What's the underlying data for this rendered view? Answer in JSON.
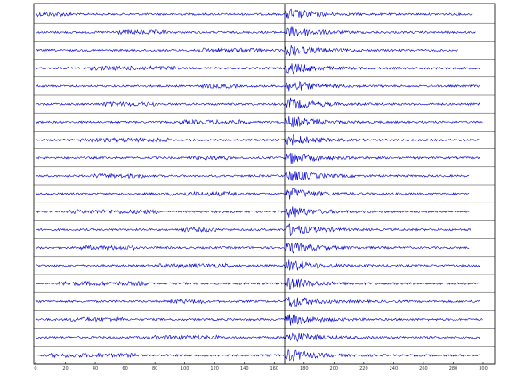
{
  "chart_data": {
    "type": "waveform",
    "color": "#0000cc",
    "xlim": [
      0,
      300
    ],
    "xticks": [
      0,
      20,
      40,
      60,
      80,
      100,
      120,
      140,
      160,
      180,
      200,
      220,
      240,
      260,
      280,
      300
    ],
    "onset": 167,
    "traces": [
      {
        "end": 293
      },
      {
        "end": 295
      },
      {
        "end": 283
      },
      {
        "end": 298
      },
      {
        "end": 298
      },
      {
        "end": 298
      },
      {
        "end": 300
      },
      {
        "end": 298
      },
      {
        "end": 298
      },
      {
        "end": 291
      },
      {
        "end": 291
      },
      {
        "end": 291
      },
      {
        "end": 292
      },
      {
        "end": 291
      },
      {
        "end": 298
      },
      {
        "end": 298
      },
      {
        "end": 298
      },
      {
        "end": 300
      },
      {
        "end": 298
      },
      {
        "end": 298
      }
    ]
  }
}
